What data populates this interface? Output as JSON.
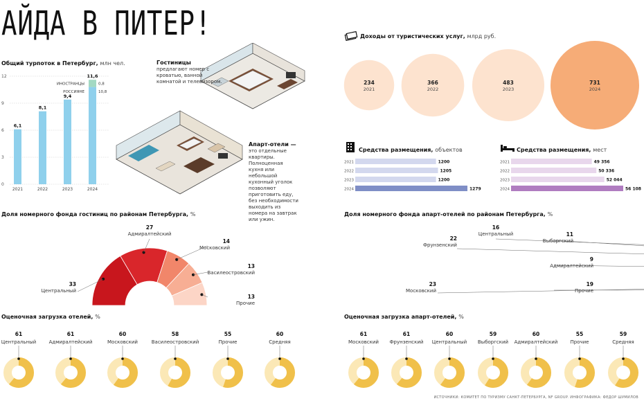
{
  "header": {
    "title": "АЙДА В ПИТЕР!"
  },
  "colors": {
    "blue": "#8fd0ec",
    "green": "#a3d9c3",
    "peach": "#fde3cf",
    "orange": "#f6ac77",
    "hotel_bar": "#d3d8ee",
    "hotel_bar_last": "#7f8ec6",
    "apart_bar": "#e8d7ec",
    "apart_bar_last": "#b07cc0",
    "donut_main": "#f0c04a",
    "donut_rest": "#fbe8b6"
  },
  "icons": {
    "money": "money-icon",
    "building": "building-icon",
    "bed": "bed-icon"
  },
  "tourist_flow": {
    "title": "Общий турпоток в Петербург,",
    "unit": "млн чел.",
    "legend_foreign": "ИНОСТРАНЦЫ",
    "legend_russian": "РОССИЯНЕ",
    "chart_data": {
      "type": "bar",
      "categories": [
        "2021",
        "2022",
        "2023",
        "2024"
      ],
      "series": [
        {
          "name": "РОССИЯНЕ",
          "values": [
            6.1,
            8.1,
            9.4,
            10.8
          ]
        },
        {
          "name": "ИНОСТРАНЦЫ",
          "values": [
            0,
            0,
            0,
            0.8
          ]
        }
      ],
      "total_labels": [
        "6,1",
        "8,1",
        "9,4",
        "11,6"
      ],
      "segment_labels": {
        "russian_2024": "10,8",
        "foreign_2024": "0,8"
      },
      "yticks": [
        0,
        3,
        6,
        9,
        12
      ],
      "ylim": [
        0,
        12
      ]
    }
  },
  "hotels_note": {
    "title": "Гостиницы",
    "text": "предлагают номер с кроватью, ванной комнатой и телевизором."
  },
  "apart_note": {
    "title": "Апарт-отели —",
    "text": "это отдельные квартиры. Полноценная кухня или небольшой кухонный уголок позволяют приготовить еду, без необходимости выходить из номера на завтрак или ужин."
  },
  "income": {
    "title": "Доходы от туристических услуг,",
    "unit": "млрд руб.",
    "chart_data": {
      "type": "bubble",
      "categories": [
        "2021",
        "2022",
        "2023",
        "2024"
      ],
      "values": [
        234,
        366,
        483,
        731
      ]
    }
  },
  "hotel_objects": {
    "title": "Средства размещения,",
    "unit": "объектов",
    "chart_data": {
      "type": "bar",
      "categories": [
        "2021",
        "2022",
        "2023",
        "2024"
      ],
      "values": [
        1200,
        1205,
        1200,
        1279
      ],
      "labels": [
        "1200",
        "1205",
        "1200",
        "1279"
      ]
    }
  },
  "hotel_places": {
    "title": "Средства размещения,",
    "unit": "мест",
    "chart_data": {
      "type": "bar",
      "categories": [
        "2021",
        "2022",
        "2023",
        "2024"
      ],
      "values": [
        49356,
        50336,
        52044,
        56108
      ],
      "labels": [
        "49 356",
        "50 336",
        "52 044",
        "56 108"
      ]
    }
  },
  "hotel_districts": {
    "title": "Доля номерного фонда гостиниц по районам Петербурга,",
    "unit": "%",
    "chart_data": {
      "type": "pie",
      "labels": [
        "Центральный",
        "Адмиралтейский",
        "Московский",
        "Василеостровский",
        "Прочие"
      ],
      "values": [
        33,
        27,
        14,
        13,
        13
      ],
      "colors": [
        "#c8161d",
        "#d9262b",
        "#f1866a",
        "#f7ae94",
        "#fcd5c6"
      ]
    }
  },
  "apart_districts": {
    "title": "Доля номерного фонда апарт-отелей по районам Петербурга,",
    "unit": "%",
    "chart_data": {
      "type": "pie",
      "labels": [
        "Московский",
        "Фрунзенский",
        "Центральный",
        "Выборгский",
        "Адмиралтейский",
        "Прочие"
      ],
      "values": [
        23,
        22,
        16,
        11,
        9,
        19
      ],
      "colors": [
        "#3e9a88",
        "#5cb8a2",
        "#73cab5",
        "#a1dcc9",
        "#c2e9dc",
        "#dff3ec"
      ]
    }
  },
  "hotel_load": {
    "title": "Оценочная загрузка отелей,",
    "unit": "%",
    "chart_data": {
      "type": "pie",
      "categories": [
        "Центральный",
        "Адмиралтейский",
        "Московский",
        "Василеостровский",
        "Прочие",
        "Средняя"
      ],
      "values": [
        61,
        61,
        60,
        58,
        55,
        60
      ]
    }
  },
  "apart_load": {
    "title": "Оценочная загрузка апарт-отелей,",
    "unit": "%",
    "chart_data": {
      "type": "pie",
      "categories": [
        "Московский",
        "Фрунзенский",
        "Центральный",
        "Выборгский",
        "Адмиралтейский",
        "Прочие",
        "Средняя"
      ],
      "values": [
        61,
        61,
        60,
        59,
        60,
        55,
        59
      ]
    }
  },
  "source": "ИСТОЧНИКИ: КОМИТЕТ ПО ТУРИЗМУ САНКТ-ПЕТЕРБУРГА, NF GROUP. ИНФОГРАФИКА: ФЕДОР ШУМИЛОВ"
}
